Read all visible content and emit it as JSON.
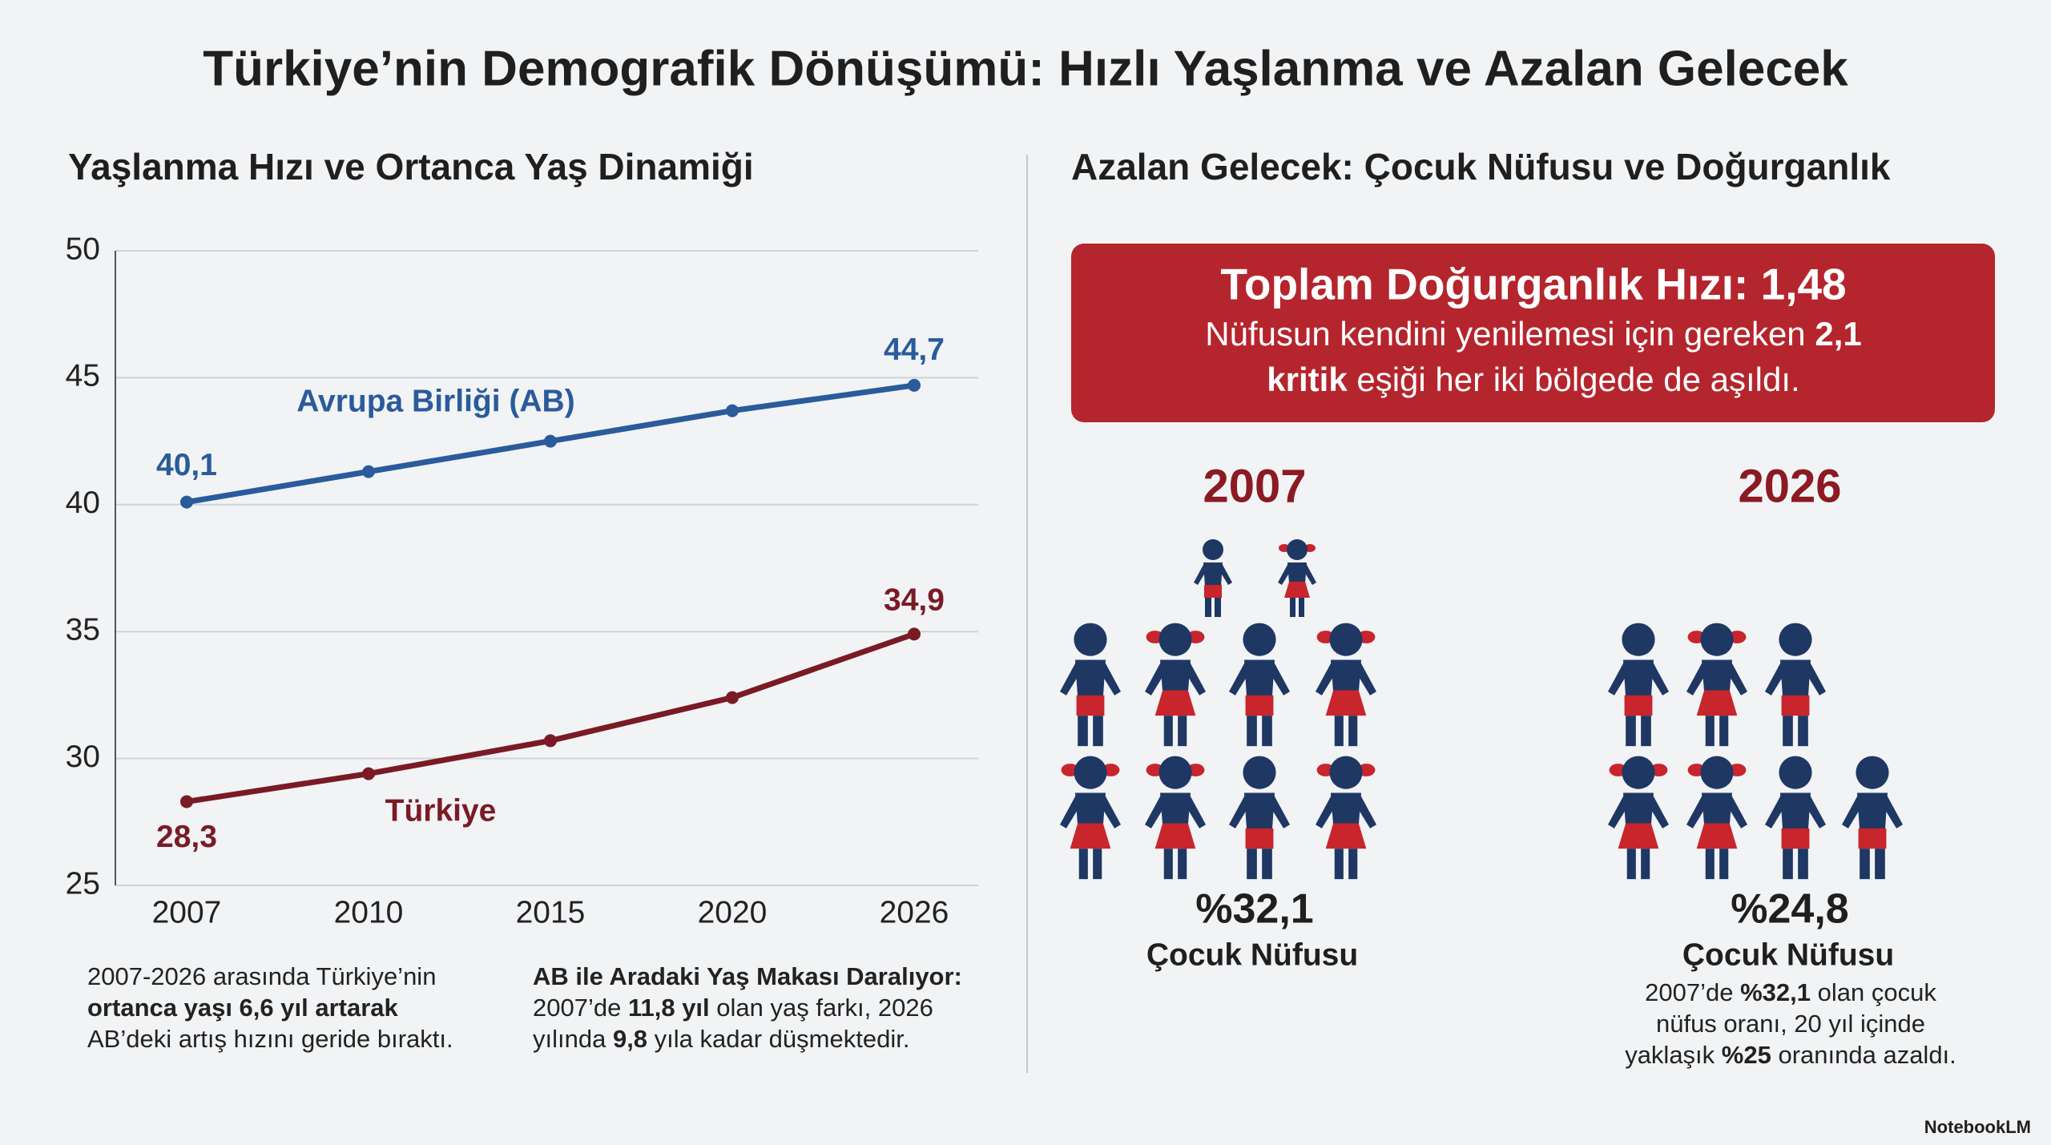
{
  "title": "Türkiye’nin Demografik Dönüşümü: Hızlı Yaşlanma ve Azalan Gelecek",
  "chart_data": {
    "type": "line",
    "title": "Yaşlanma Hızı ve Ortanca Yaş Dinamiği",
    "categories": [
      "2007",
      "2010",
      "2015",
      "2020",
      "2026"
    ],
    "series": [
      {
        "name": "Avrupa Birliği (AB)",
        "color": "#2a5b9b",
        "values": [
          40.1,
          41.3,
          42.5,
          43.7,
          44.7
        ],
        "value_labels": [
          "40,1",
          null,
          null,
          null,
          "44,7"
        ]
      },
      {
        "name": "Türkiye",
        "color": "#7a1a25",
        "values": [
          28.3,
          29.4,
          30.7,
          32.4,
          34.9
        ],
        "value_labels": [
          "28,3",
          null,
          null,
          null,
          "34,9"
        ]
      }
    ],
    "ylim": [
      25,
      50
    ],
    "yticks": [
      25,
      30,
      35,
      40,
      45,
      50
    ],
    "grid": true
  },
  "left_notes": [
    {
      "lines": [
        [
          "2007-2026 arasında Türkiye’nin"
        ],
        [
          {
            "text": "ortanca yaşı 6,6 yıl artarak",
            "bold": true
          }
        ],
        [
          "AB’deki artış hızını geride bıraktı."
        ]
      ]
    },
    {
      "lines": [
        [
          {
            "text": "AB ile Aradaki Yaş Makası Daralıyor:",
            "bold": true
          }
        ],
        [
          "2007’de ",
          {
            "text": "11,8 yıl",
            "bold": true
          },
          " olan yaş farkı, 2026"
        ],
        [
          "yılında ",
          {
            "text": "9,8",
            "bold": true
          },
          " yıla kadar düşmektedir."
        ]
      ]
    }
  ],
  "right_panel": {
    "title": "Azalan Gelecek: Çocuk Nüfusu ve Doğurganlık",
    "banner": {
      "title": "Toplam Doğurganlık Hızı: 1,48",
      "lines": [
        [
          "Nüfusun kendini yenilemesi için gereken ",
          {
            "text": "2,1",
            "bold": true
          }
        ],
        [
          {
            "text": "kritik",
            "bold": true
          },
          " eşiği her iki bölgede de aşıldı."
        ]
      ]
    },
    "groups": [
      {
        "year": "2007",
        "percent": "%32,1",
        "label": "Çocuk Nüfusu"
      },
      {
        "year": "2026",
        "percent": "%24,8",
        "label": "Çocuk Nüfusu",
        "note": [
          [
            "2007’de ",
            {
              "text": "%32,1",
              "bold": true
            },
            " olan çocuk"
          ],
          [
            "nüfus oranı, 20 yıl içinde"
          ],
          [
            "yaklaşık ",
            {
              "text": "%25",
              "bold": true
            },
            " oranında azaldı."
          ]
        ]
      }
    ]
  },
  "brand": "NotebookLM"
}
